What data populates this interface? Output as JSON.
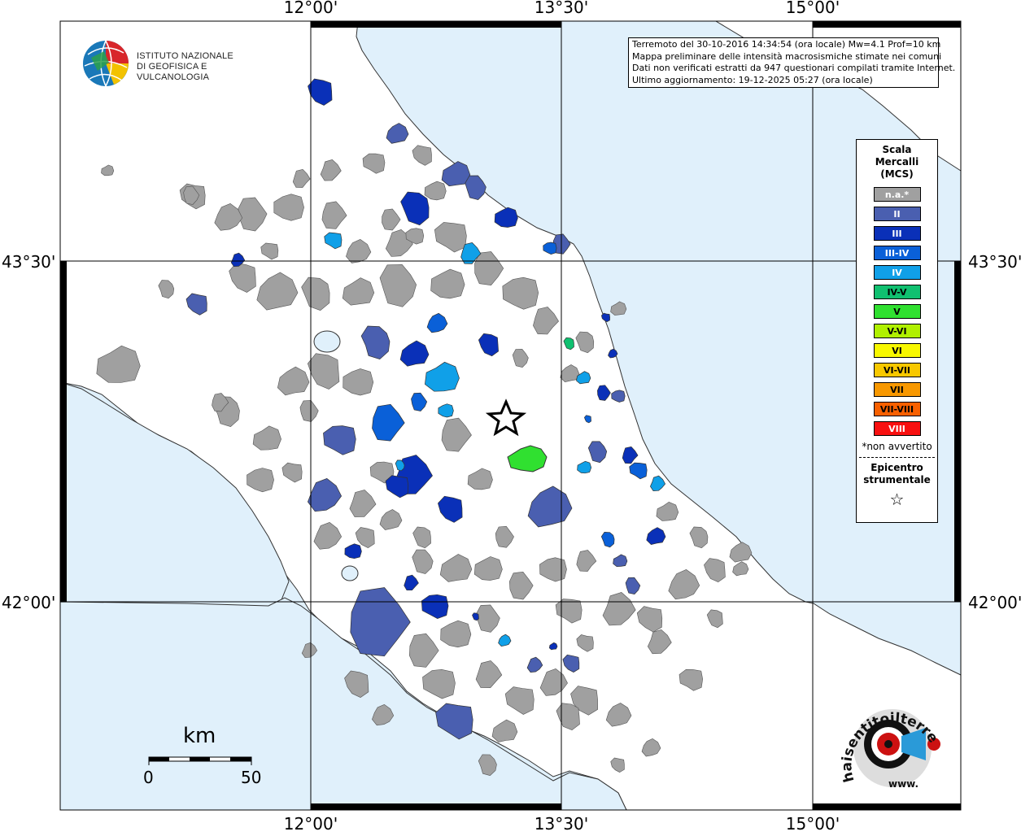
{
  "map": {
    "lon_labels": [
      "12°00'",
      "13°30'",
      "15°00'"
    ],
    "lat_labels": [
      "43°30'",
      "42°00'"
    ],
    "sea_color": "#e0f0fb",
    "land_color": "#ffffff"
  },
  "info": {
    "line1": "Terremoto del 30-10-2016 14:34:54 (ora locale) Mw=4.1 Prof=10 km",
    "line2": "Mappa preliminare delle intensità macrosismiche stimate nei comuni",
    "line3": "Dati non verificati estratti da 947 questionari compilati tramite Internet.",
    "line4": "Ultimo aggiornamento: 19-12-2025 05:27 (ora locale)"
  },
  "logo": {
    "line1": "ISTITUTO NAZIONALE",
    "line2": "DI GEOFISICA E VULCANOLOGIA"
  },
  "legend": {
    "title1": "Scala",
    "title2": "Mercalli",
    "title3": "(MCS)",
    "items": [
      {
        "label": "n.a.*",
        "color": "#a0a0a0",
        "text_color": "#ffffff"
      },
      {
        "label": "II",
        "color": "#4a5fb0",
        "text_color": "#ffffff"
      },
      {
        "label": "III",
        "color": "#0a30b8",
        "text_color": "#ffffff"
      },
      {
        "label": "III-IV",
        "color": "#0a60d8",
        "text_color": "#ffffff"
      },
      {
        "label": "IV",
        "color": "#10a0e8",
        "text_color": "#ffffff"
      },
      {
        "label": "IV-V",
        "color": "#10c070",
        "text_color": "#000000"
      },
      {
        "label": "V",
        "color": "#30e030",
        "text_color": "#000000"
      },
      {
        "label": "V-VI",
        "color": "#b0f000",
        "text_color": "#000000"
      },
      {
        "label": "VI",
        "color": "#f8f800",
        "text_color": "#000000"
      },
      {
        "label": "VI-VII",
        "color": "#f8c800",
        "text_color": "#000000"
      },
      {
        "label": "VII",
        "color": "#f89800",
        "text_color": "#000000"
      },
      {
        "label": "VII-VIII",
        "color": "#f86000",
        "text_color": "#000000"
      },
      {
        "label": "VIII",
        "color": "#f81010",
        "text_color": "#ffffff"
      }
    ],
    "note": "*non avvertito",
    "epicenter1": "Epicentro",
    "epicenter2": "strumentale",
    "star": "☆"
  },
  "scale_bar": {
    "unit": "km",
    "start": "0",
    "end": "50"
  },
  "haisentito": {
    "text": "haisentitoilterremoto.it",
    "prefix": "www."
  }
}
